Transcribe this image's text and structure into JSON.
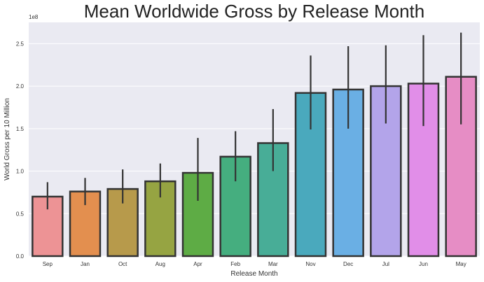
{
  "chart_data": {
    "type": "bar",
    "title": "Mean Worldwide Gross by Release Month",
    "xlabel": "Release Month",
    "ylabel": "World Gross per 10 Million",
    "y_exponent_label": "1e8",
    "ylim": [
      0,
      2.75
    ],
    "yticks": [
      "0.0",
      "0.5",
      "1.0",
      "1.5",
      "2.0",
      "2.5"
    ],
    "grid": true,
    "categories": [
      "Sep",
      "Jan",
      "Oct",
      "Aug",
      "Apr",
      "Feb",
      "Mar",
      "Nov",
      "Dec",
      "Jul",
      "Jun",
      "May"
    ],
    "values": [
      0.7,
      0.76,
      0.79,
      0.88,
      0.98,
      1.17,
      1.33,
      1.92,
      1.96,
      2.0,
      2.03,
      2.11
    ],
    "error_low": [
      0.55,
      0.6,
      0.62,
      0.69,
      0.65,
      0.88,
      1.0,
      1.49,
      1.5,
      1.56,
      1.53,
      1.55
    ],
    "error_high": [
      0.87,
      0.92,
      1.02,
      1.09,
      1.39,
      1.47,
      1.73,
      2.36,
      2.47,
      2.48,
      2.6,
      2.63
    ],
    "colors": [
      "#ed9395",
      "#e38f4f",
      "#b79a4b",
      "#96a442",
      "#5eac45",
      "#45ae7f",
      "#48ad97",
      "#4aa9bd",
      "#6aafe4",
      "#b3a4ea",
      "#e18ee8",
      "#e68dc5"
    ],
    "background": "#eaeaf2",
    "edge_color": "#333333"
  }
}
